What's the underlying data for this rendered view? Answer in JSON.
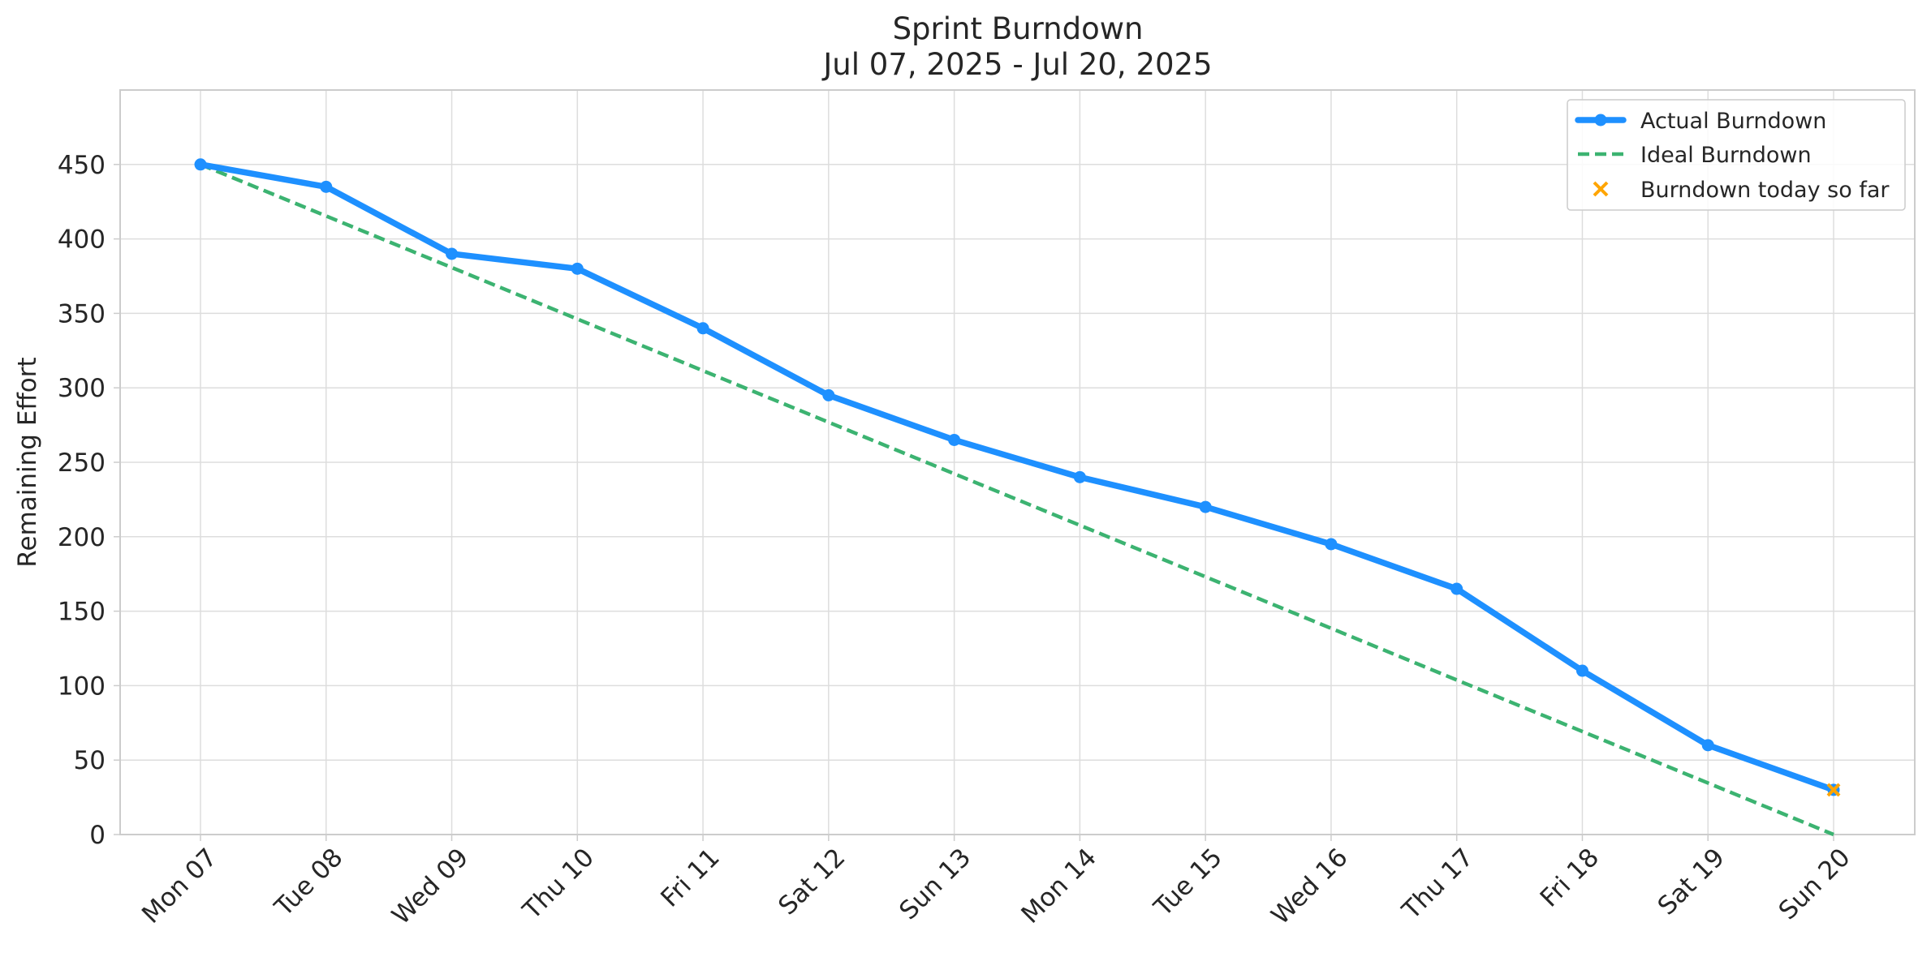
{
  "chart_data": {
    "type": "line",
    "title": "Sprint Burndown",
    "subtitle": "Jul 07, 2025 - Jul 20, 2025",
    "xlabel": "",
    "ylabel": "Remaining Effort",
    "categories": [
      "Mon 07",
      "Tue 08",
      "Wed 09",
      "Thu 10",
      "Fri 11",
      "Sat 12",
      "Sun 13",
      "Mon 14",
      "Tue 15",
      "Wed 16",
      "Thu 17",
      "Fri 18",
      "Sat 19",
      "Sun 20"
    ],
    "ylim": [
      0,
      500
    ],
    "yticks": [
      0,
      50,
      100,
      150,
      200,
      250,
      300,
      350,
      400,
      450
    ],
    "grid": true,
    "legend_position": "top-right",
    "series": [
      {
        "name": "Actual Burndown",
        "style": "solid-with-markers",
        "color": "#1e90ff",
        "values": [
          450,
          435,
          390,
          380,
          340,
          295,
          265,
          240,
          220,
          195,
          165,
          110,
          60,
          30
        ]
      },
      {
        "name": "Ideal Burndown",
        "style": "dashed",
        "color": "#3cb371",
        "values": [
          450,
          415.4,
          380.8,
          346.2,
          311.5,
          276.9,
          242.3,
          207.7,
          173.1,
          138.5,
          103.8,
          69.2,
          34.6,
          0
        ]
      },
      {
        "name": "Burndown today so far",
        "style": "x-marker",
        "color": "#ffa500",
        "points": [
          {
            "x": "Sun 20",
            "y": 30
          }
        ]
      }
    ]
  }
}
